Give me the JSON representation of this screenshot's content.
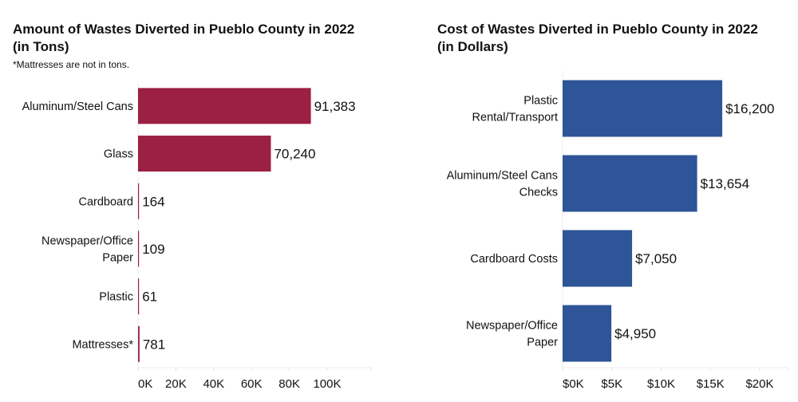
{
  "chart_data": [
    {
      "type": "bar",
      "orientation": "horizontal",
      "title": "Amount of Wastes Diverted in Pueblo County in 2022 (in Tons)",
      "title_lines": [
        "Amount of Wastes Diverted in Pueblo County in 2022",
        "(in Tons)"
      ],
      "subtitle": "*Mattresses are not in tons.",
      "categories": [
        "Aluminum/Steel Cans",
        "Glass",
        "Cardboard",
        "Newspaper/Office Paper",
        "Plastic",
        "Mattresses*"
      ],
      "category_lines": [
        [
          "Aluminum/Steel Cans"
        ],
        [
          "Glass"
        ],
        [
          "Cardboard"
        ],
        [
          "Newspaper/Office",
          "Paper"
        ],
        [
          "Plastic"
        ],
        [
          "Mattresses*"
        ]
      ],
      "values": [
        91383,
        70240,
        164,
        109,
        61,
        781
      ],
      "data_labels": [
        "91,383",
        "70,240",
        "164",
        "109",
        "61",
        "781"
      ],
      "xlim": [
        0,
        120000
      ],
      "ticks": [
        0,
        20000,
        40000,
        60000,
        80000,
        100000
      ],
      "tick_labels": [
        "0K",
        "20K",
        "40K",
        "60K",
        "80K",
        "100K"
      ],
      "xlabel": "",
      "ylabel": "",
      "color": "#9b2042",
      "grid": false
    },
    {
      "type": "bar",
      "orientation": "horizontal",
      "title": "Cost of Wastes Diverted in Pueblo County in 2022 (in Dollars)",
      "title_lines": [
        "Cost of Wastes Diverted in Pueblo County in 2022",
        "(in Dollars)"
      ],
      "categories": [
        "Plastic Rental/Transport",
        "Aluminum/Steel Cans Checks",
        "Cardboard Costs",
        "Newspaper/Office Paper"
      ],
      "category_lines": [
        [
          "Plastic",
          "Rental/Transport"
        ],
        [
          "Aluminum/Steel Cans",
          "Checks"
        ],
        [
          "Cardboard Costs"
        ],
        [
          "Newspaper/Office",
          "Paper"
        ]
      ],
      "values": [
        16200,
        13654,
        7050,
        4950
      ],
      "data_labels": [
        "$16,200",
        "$13,654",
        "$7,050",
        "$4,950"
      ],
      "xlim": [
        0,
        22500
      ],
      "ticks": [
        0,
        5000,
        10000,
        15000,
        20000
      ],
      "tick_labels": [
        "$0K",
        "$5K",
        "$10K",
        "$15K",
        "$20K"
      ],
      "xlabel": "",
      "ylabel": "",
      "color": "#2e5597",
      "grid": false
    }
  ]
}
